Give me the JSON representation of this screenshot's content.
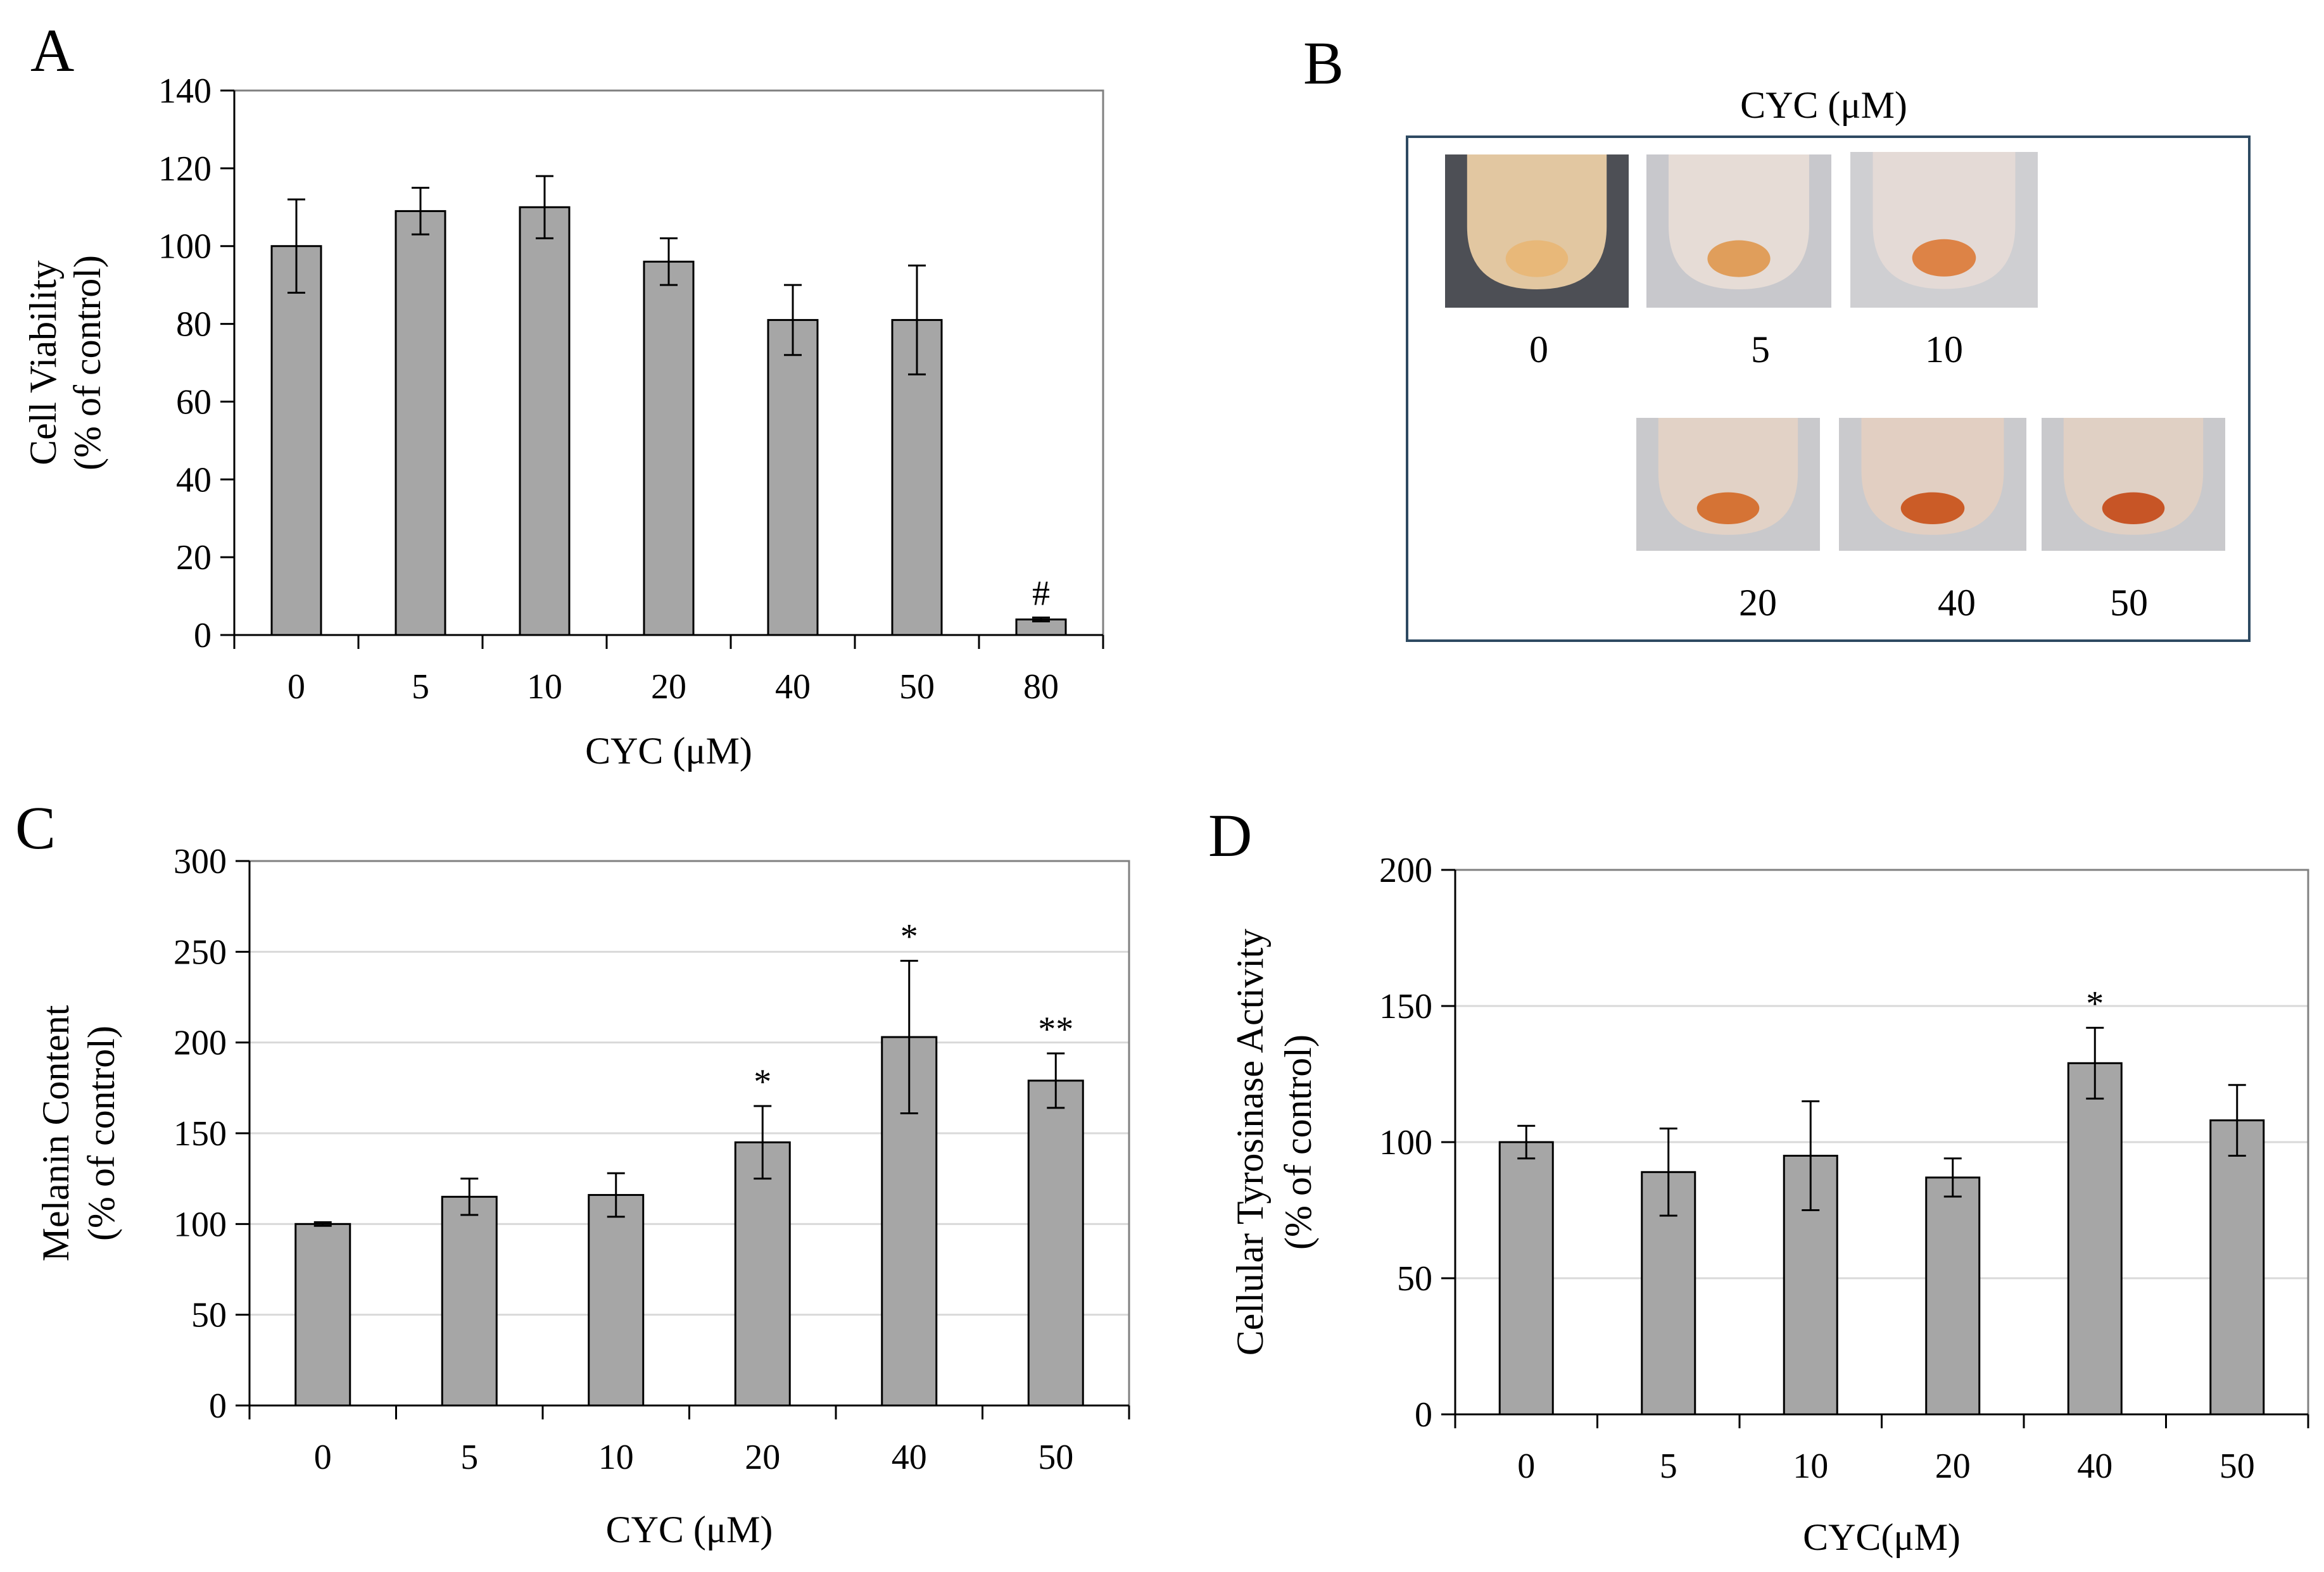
{
  "panels": [
    {
      "letter": "A"
    },
    {
      "letter": "B"
    },
    {
      "letter": "C"
    },
    {
      "letter": "D"
    }
  ],
  "photos": {
    "title": "CYC (μM)",
    "items": [
      {
        "label": "0",
        "tube": "#e2c7a1",
        "pellet": "#e8b675",
        "bg": "#4d4f55"
      },
      {
        "label": "5",
        "tube": "#e6dcd6",
        "pellet": "#df9850",
        "bg": "#c8c8cc"
      },
      {
        "label": "10",
        "tube": "#e4dad6",
        "pellet": "#dc7c3a",
        "bg": "#cfcfd2"
      },
      {
        "label": "20",
        "tube": "#e2d2c6",
        "pellet": "#d46a28",
        "bg": "#c9c9cc"
      },
      {
        "label": "40",
        "tube": "#e2cfc2",
        "pellet": "#c9521a",
        "bg": "#cacacd"
      },
      {
        "label": "50",
        "tube": "#e0d0c4",
        "pellet": "#c44a18",
        "bg": "#c9c9cc"
      }
    ]
  },
  "chart_data": [
    {
      "type": "bar",
      "categories": [
        "0",
        "5",
        "10",
        "20",
        "40",
        "50",
        "80"
      ],
      "values": [
        100,
        109,
        110,
        96,
        81,
        81,
        4
      ],
      "errors": [
        12,
        6,
        8,
        6,
        9,
        14,
        0.5
      ],
      "annotations": [
        "",
        "",
        "",
        "",
        "",
        "",
        "#"
      ],
      "title": "",
      "xlabel": "CYC (μM)",
      "ylabel": [
        "Cell Viability",
        "(% of control)"
      ],
      "ylim": [
        0,
        140
      ],
      "yticks": [
        0,
        20,
        40,
        60,
        80,
        100,
        120,
        140
      ],
      "grid": false,
      "bar_color": "#a6a6a6"
    },
    {
      "type": "bar",
      "categories": [
        "0",
        "5",
        "10",
        "20",
        "40",
        "50"
      ],
      "values": [
        100,
        115,
        116,
        145,
        203,
        179
      ],
      "errors": [
        1,
        10,
        12,
        20,
        42,
        15
      ],
      "annotations": [
        "",
        "",
        "",
        "*",
        "*",
        "**"
      ],
      "title": "",
      "xlabel": "CYC (μM)",
      "ylabel": [
        "Melanin Content",
        "(% of control)"
      ],
      "ylim": [
        0,
        300
      ],
      "yticks": [
        0,
        50,
        100,
        150,
        200,
        250,
        300
      ],
      "grid": true,
      "bar_color": "#a6a6a6"
    },
    {
      "type": "bar",
      "categories": [
        "0",
        "5",
        "10",
        "20",
        "40",
        "50"
      ],
      "values": [
        100,
        89,
        95,
        87,
        129,
        108
      ],
      "errors": [
        6,
        16,
        20,
        7,
        13,
        13
      ],
      "annotations": [
        "",
        "",
        "",
        "",
        "*",
        ""
      ],
      "title": "",
      "xlabel": "CYC(μM)",
      "ylabel": [
        "Cellular Tyrosinase Activity",
        "(% of control)"
      ],
      "ylim": [
        0,
        200
      ],
      "yticks": [
        0,
        50,
        100,
        150,
        200
      ],
      "grid": true,
      "bar_color": "#a6a6a6"
    }
  ]
}
